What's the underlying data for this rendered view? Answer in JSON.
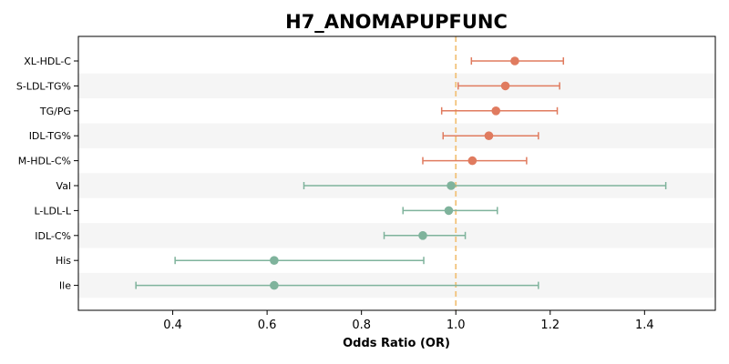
{
  "chart_data": {
    "type": "forest",
    "title": "H7_ANOMAPUPFUNC",
    "xlabel": "Odds Ratio (OR)",
    "ylabel": "",
    "xlim": [
      0.2,
      1.55
    ],
    "xticks": [
      0.4,
      0.6,
      0.8,
      1.0,
      1.2,
      1.4
    ],
    "xtick_labels": [
      "0.4",
      "0.6",
      "0.8",
      "1.0",
      "1.2",
      "1.4"
    ],
    "reference_line": 1.0,
    "colors": {
      "positive": "#e07b5f",
      "negative": "#7fb39c",
      "reference": "#f2c27a",
      "band": "#f5f5f5"
    },
    "rows": [
      {
        "label": "XL-HDL-C",
        "or": 1.125,
        "lower": 1.033,
        "upper": 1.228,
        "group": "positive"
      },
      {
        "label": "S-LDL-TG%",
        "or": 1.105,
        "lower": 1.005,
        "upper": 1.22,
        "group": "positive"
      },
      {
        "label": "TG/PG",
        "or": 1.085,
        "lower": 0.97,
        "upper": 1.215,
        "group": "positive"
      },
      {
        "label": "IDL-TG%",
        "or": 1.07,
        "lower": 0.973,
        "upper": 1.175,
        "group": "positive"
      },
      {
        "label": "M-HDL-C%",
        "or": 1.035,
        "lower": 0.93,
        "upper": 1.15,
        "group": "positive"
      },
      {
        "label": "Val",
        "or": 0.99,
        "lower": 0.678,
        "upper": 1.445,
        "group": "negative"
      },
      {
        "label": "L-LDL-L",
        "or": 0.985,
        "lower": 0.888,
        "upper": 1.088,
        "group": "negative"
      },
      {
        "label": "IDL-C%",
        "or": 0.93,
        "lower": 0.848,
        "upper": 1.02,
        "group": "negative"
      },
      {
        "label": "His",
        "or": 0.615,
        "lower": 0.405,
        "upper": 0.932,
        "group": "negative"
      },
      {
        "label": "Ile",
        "or": 0.615,
        "lower": 0.322,
        "upper": 1.175,
        "group": "negative"
      }
    ]
  }
}
